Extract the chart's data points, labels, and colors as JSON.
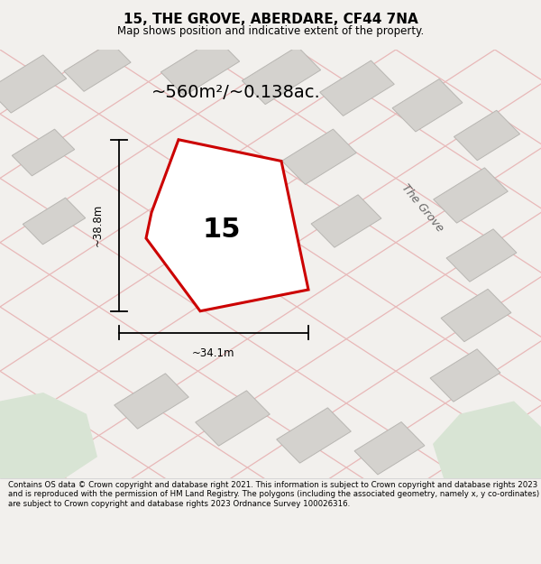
{
  "title": "15, THE GROVE, ABERDARE, CF44 7NA",
  "subtitle": "Map shows position and indicative extent of the property.",
  "area_text": "~560m²/~0.138ac.",
  "label_number": "15",
  "dim_width": "~34.1m",
  "dim_height": "~38.8m",
  "road_label": "The Grove",
  "footer": "Contains OS data © Crown copyright and database right 2021. This information is subject to Crown copyright and database rights 2023 and is reproduced with the permission of HM Land Registry. The polygons (including the associated geometry, namely x, y co-ordinates) are subject to Crown copyright and database rights 2023 Ordnance Survey 100026316.",
  "bg_color": "#f2f0ed",
  "map_bg": "#eeebe6",
  "plot_fill": "#ffffff",
  "plot_outline": "#cc0000",
  "building_fill": "#d4d2ce",
  "building_outline": "#b8b6b2",
  "road_line_color": "#e8b8b8",
  "green_area_color": "#d8e4d4",
  "footer_bg": "#ffffff",
  "title_fontsize": 11,
  "subtitle_fontsize": 8.5,
  "area_fontsize": 14,
  "label_fontsize": 22,
  "dim_fontsize": 8.5,
  "road_label_fontsize": 9
}
